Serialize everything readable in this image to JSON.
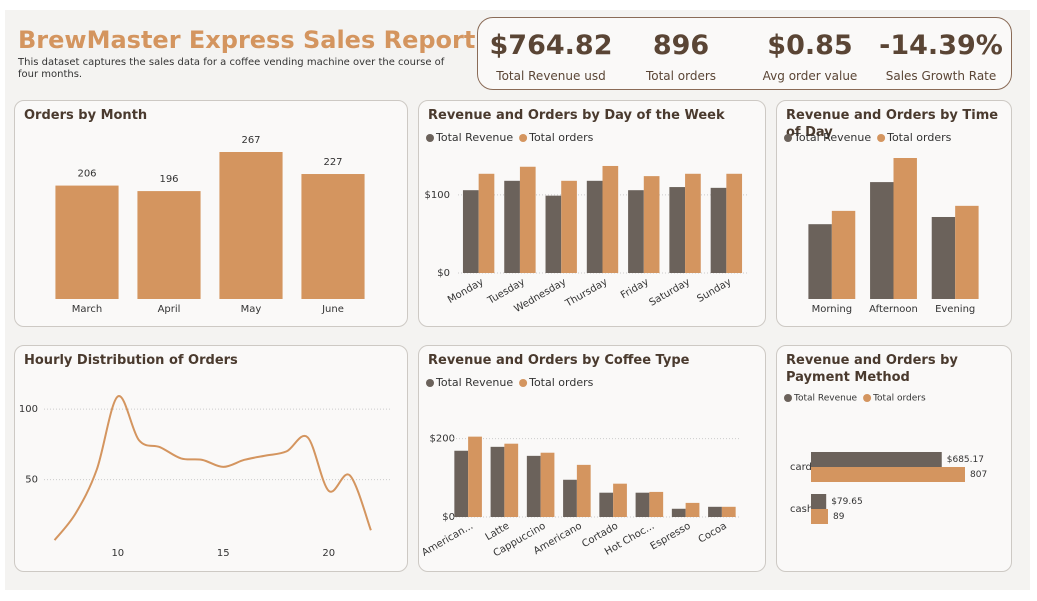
{
  "header": {
    "title": "BrewMaster Express Sales Report",
    "subtitle": "This dataset captures the sales data for a coffee vending machine over the course of four months."
  },
  "kpis": [
    {
      "value": "$764.82",
      "label": "Total Revenue usd"
    },
    {
      "value": "896",
      "label": "Total orders"
    },
    {
      "value": "$0.85",
      "label": "Avg order value"
    },
    {
      "value": "-14.39%",
      "label": "Sales Growth Rate"
    }
  ],
  "chart_data": [
    {
      "type": "bar",
      "title": "Orders by Month",
      "categories": [
        "March",
        "April",
        "May",
        "June"
      ],
      "values": [
        206,
        196,
        267,
        227
      ],
      "color": "#d4955f"
    },
    {
      "type": "bar",
      "title": "Revenue and Orders by Day of the Week",
      "categories": [
        "Monday",
        "Tuesday",
        "Wednesday",
        "Thursday",
        "Friday",
        "Saturday",
        "Sunday"
      ],
      "series": [
        {
          "name": "Total Revenue",
          "color": "#6b625b",
          "values": [
            106,
            118,
            99,
            118,
            106,
            110,
            109
          ]
        },
        {
          "name": "Total orders",
          "color": "#d4955f",
          "values": [
            127,
            136,
            118,
            137,
            124,
            127,
            127
          ]
        }
      ],
      "ylim": [
        0,
        160
      ],
      "yticks": [
        {
          "value": 0,
          "label": "$0"
        },
        {
          "value": 100,
          "label": "$100"
        }
      ],
      "grid": true
    },
    {
      "type": "bar",
      "title": "Revenue and Orders by Time of Day",
      "categories": [
        "Morning",
        "Afternoon",
        "Evening"
      ],
      "series": [
        {
          "name": "Total Revenue",
          "color": "#6b625b",
          "values": [
            208,
            325,
            228
          ]
        },
        {
          "name": "Total orders",
          "color": "#d4955f",
          "values": [
            245,
            392,
            259
          ]
        }
      ]
    },
    {
      "type": "line",
      "title": "Hourly Distribution of Orders",
      "x": [
        7,
        8,
        9,
        10,
        11,
        12,
        13,
        14,
        15,
        16,
        17,
        18,
        19,
        20,
        21,
        22
      ],
      "values": [
        7,
        26,
        57,
        109,
        78,
        73,
        65,
        64,
        59,
        64,
        67,
        70,
        80,
        42,
        53,
        14
      ],
      "color": "#d4955f",
      "xlim": [
        6.5,
        23
      ],
      "xticks": [
        10,
        15,
        20
      ],
      "ylim": [
        0,
        115
      ],
      "yticks": [
        50,
        100
      ],
      "grid": true
    },
    {
      "type": "bar",
      "title": "Revenue and Orders by Coffee Type",
      "categories": [
        "American...",
        "Latte",
        "Cappuccino",
        "Americano",
        "Cortado",
        "Hot Choc...",
        "Espresso",
        "Cocoa"
      ],
      "series": [
        {
          "name": "Total Revenue",
          "color": "#6b625b",
          "values": [
            169,
            179,
            156,
            95,
            62,
            62,
            21,
            26
          ]
        },
        {
          "name": "Total orders",
          "color": "#d4955f",
          "values": [
            205,
            187,
            164,
            133,
            85,
            64,
            36,
            26
          ]
        }
      ],
      "ylim": [
        0,
        250
      ],
      "yticks": [
        {
          "value": 0,
          "label": "$0"
        },
        {
          "value": 200,
          "label": "$200"
        }
      ],
      "grid": true
    },
    {
      "type": "bar",
      "horizontal": true,
      "title": "Revenue and Orders by Payment Method",
      "categories": [
        "card",
        "cash"
      ],
      "series": [
        {
          "name": "Total Revenue",
          "color": "#6b625b",
          "values": [
            685.17,
            79.65
          ],
          "value_labels": [
            "$685.17",
            "$79.65"
          ]
        },
        {
          "name": "Total orders",
          "color": "#d4955f",
          "values": [
            807,
            89
          ]
        }
      ]
    }
  ]
}
